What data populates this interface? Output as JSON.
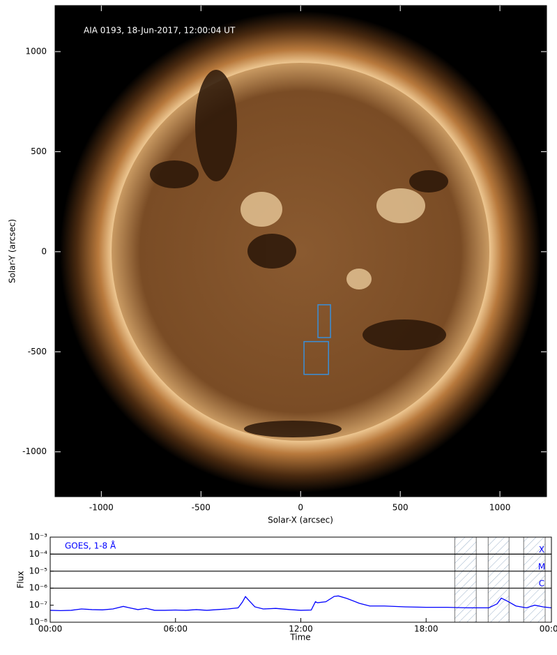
{
  "chart_data": [
    {
      "type": "image",
      "annotation": "AIA 0193, 18-Jun-2017, 12:00:04 UT",
      "xlabel": "Solar-X (arcsec)",
      "ylabel": "Solar-Y (arcsec)",
      "xlim": [
        -1232,
        1234
      ],
      "ylim": [
        -1224,
        1230
      ],
      "xticks": [
        -1000,
        -500,
        0,
        500,
        1000
      ],
      "yticks": [
        -1000,
        -500,
        0,
        500,
        1000
      ],
      "boxes": [
        {
          "x": [
            87,
            150
          ],
          "y": [
            -429,
            -265
          ]
        },
        {
          "x": [
            17,
            140
          ],
          "y": [
            -613,
            -449
          ]
        }
      ],
      "box_color": "#3a8fd9"
    },
    {
      "type": "line",
      "annotation": "GOES, 1-8 Å",
      "xlabel": "Time",
      "ylabel": "Flux",
      "xlim": [
        0,
        24
      ],
      "ylim": [
        1e-08,
        0.001
      ],
      "ylog": true,
      "xticks": [
        {
          "value": 0,
          "label": "00:00"
        },
        {
          "value": 6,
          "label": "06:00"
        },
        {
          "value": 12,
          "label": "12:00"
        },
        {
          "value": 18,
          "label": "18:00"
        },
        {
          "value": 24,
          "label": "00:00"
        }
      ],
      "yticks": [
        {
          "value": 1e-08,
          "label": "10⁻⁸"
        },
        {
          "value": 1e-07,
          "label": "10⁻⁷"
        },
        {
          "value": 1e-06,
          "label": "10⁻⁶"
        },
        {
          "value": 1e-05,
          "label": "10⁻⁵"
        },
        {
          "value": 0.0001,
          "label": "10⁻⁴"
        },
        {
          "value": 0.001,
          "label": "10⁻³"
        }
      ],
      "flare_classes": [
        {
          "label": "X",
          "value": 0.0001
        },
        {
          "label": "M",
          "value": 1e-05
        },
        {
          "label": "C",
          "value": 1e-06
        }
      ],
      "shaded_intervals": [
        [
          19.37,
          20.4
        ],
        [
          20.97,
          21.97
        ],
        [
          22.67,
          23.7
        ]
      ],
      "color": "#0000ff",
      "x": [
        0,
        0.5,
        1,
        1.5,
        2,
        2.5,
        3,
        3.5,
        3.8,
        4.2,
        4.6,
        5,
        5.5,
        6,
        6.5,
        7,
        7.5,
        8,
        8.5,
        9,
        9.2,
        9.35,
        9.5,
        9.8,
        10.2,
        10.8,
        11.5,
        12,
        12.5,
        12.7,
        12.8,
        13.2,
        13.6,
        13.8,
        14.2,
        14.8,
        15.3,
        16,
        17,
        18,
        19,
        20,
        21,
        21.4,
        21.6,
        21.9,
        22.3,
        22.8,
        23.2,
        23.6,
        24
      ],
      "values": [
        5e-08,
        4.8e-08,
        5e-08,
        6e-08,
        5.5e-08,
        5.3e-08,
        6e-08,
        8.5e-08,
        7e-08,
        5.5e-08,
        6.5e-08,
        5e-08,
        5e-08,
        5.2e-08,
        5e-08,
        5.5e-08,
        5e-08,
        5.5e-08,
        6e-08,
        7e-08,
        1.5e-07,
        3.2e-07,
        2e-07,
        8e-08,
        6e-08,
        6.5e-08,
        5.5e-08,
        5e-08,
        5.2e-08,
        1.6e-07,
        1.4e-07,
        1.6e-07,
        3.3e-07,
        3.5e-07,
        2.5e-07,
        1.3e-07,
        9e-08,
        9e-08,
        8e-08,
        7.5e-08,
        7.5e-08,
        7e-08,
        7e-08,
        1.2e-07,
        2.6e-07,
        1.7e-07,
        9e-08,
        7e-08,
        1e-07,
        8e-08,
        7e-08
      ]
    }
  ]
}
